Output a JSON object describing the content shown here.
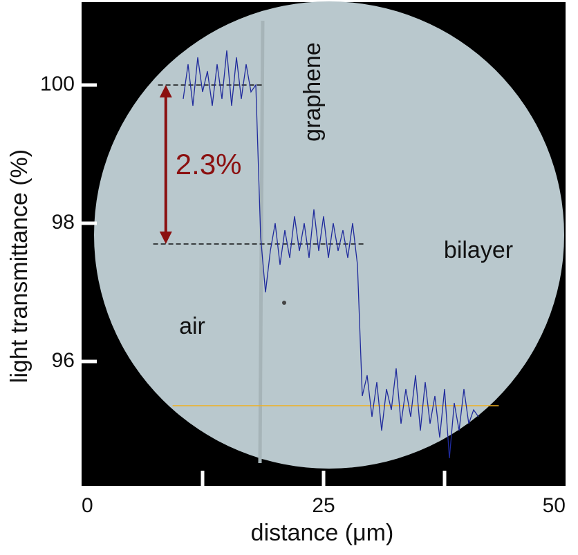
{
  "chart_data": {
    "type": "line",
    "xlabel": "distance (μm)",
    "ylabel": "light  transmittance  (%)",
    "xlim": [
      0,
      50
    ],
    "xticks": [
      0,
      25,
      50
    ],
    "x_tick_marks": [
      12.5,
      25,
      37.5
    ],
    "ylim": [
      94.2,
      101.2
    ],
    "yticks": [
      96,
      98,
      100
    ],
    "x": [
      10.5,
      11,
      11.5,
      12,
      12.5,
      13,
      13.5,
      14,
      14.5,
      15,
      15.5,
      16,
      16.5,
      17,
      17.5,
      18,
      18.5,
      19,
      19.5,
      20,
      20.5,
      21,
      21.5,
      22,
      22.5,
      23,
      23.5,
      24,
      24.5,
      25,
      25.5,
      26,
      26.5,
      27,
      27.5,
      28,
      28.5,
      29,
      29.5,
      30,
      30.5,
      31,
      31.5,
      32,
      32.5,
      33,
      33.5,
      34,
      34.5,
      35,
      35.5,
      36,
      36.5,
      37,
      37.5,
      38,
      38.5,
      39,
      39.5,
      40,
      40.5,
      41
    ],
    "series": [
      {
        "color": "#1f2a9c",
        "values": [
          99.8,
          100.3,
          99.7,
          100.4,
          99.9,
          100.2,
          99.7,
          100.3,
          99.8,
          100.5,
          99.7,
          100.4,
          99.8,
          100.3,
          99.9,
          100.0,
          97.8,
          97.0,
          97.6,
          98.0,
          97.4,
          97.9,
          97.5,
          98.1,
          97.6,
          98.0,
          97.5,
          98.2,
          97.6,
          98.1,
          97.5,
          98.0,
          97.6,
          97.9,
          97.5,
          98.0,
          97.4,
          95.5,
          95.8,
          95.2,
          95.7,
          95.0,
          95.6,
          95.3,
          95.9,
          95.1,
          95.6,
          95.2,
          95.8,
          95.0,
          95.7,
          95.1,
          95.5,
          94.9,
          95.6,
          94.6,
          95.4,
          95.0,
          95.6,
          95.1,
          95.3,
          95.2
        ]
      }
    ],
    "reference_lines": [
      {
        "y": 100,
        "x": [
          7.9,
          18.9
        ],
        "color": "#111111",
        "style": "dashed"
      },
      {
        "y": 97.7,
        "x": [
          7.4,
          29.3
        ],
        "color": "#111111",
        "style": "dashed"
      },
      {
        "y": 95.36,
        "x": [
          9.4,
          43.1
        ],
        "color": "#f0b020",
        "style": "solid"
      }
    ],
    "arrow": {
      "x": 8.7,
      "y": [
        100,
        97.7
      ],
      "color": "#8b1010",
      "label": "2.3%"
    },
    "annotations": [
      "graphene",
      "bilayer",
      "air"
    ]
  }
}
